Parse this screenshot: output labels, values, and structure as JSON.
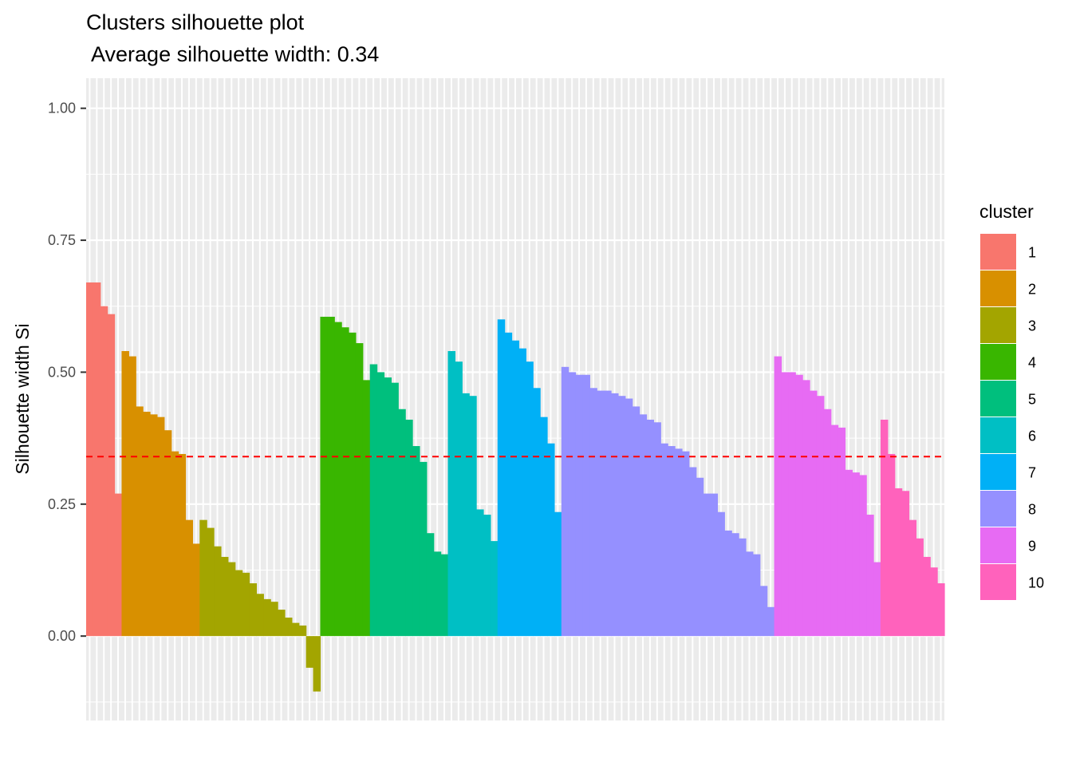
{
  "chart_data": {
    "type": "bar",
    "title": "Clusters silhouette plot",
    "subtitle": " Average silhouette width: 0.34",
    "xlabel": "",
    "ylabel": "Silhouette width Si",
    "ylim": [
      -0.16,
      1.057
    ],
    "yticks": [
      "0.00",
      "0.25",
      "0.50",
      "0.75",
      "1.00"
    ],
    "ytick_values": [
      0,
      0.25,
      0.5,
      0.75,
      1.0
    ],
    "average_line": 0.34,
    "average_line_color": "#FF0000",
    "panel_background": "#EBEBEB",
    "grid": true,
    "legend": {
      "title": "cluster",
      "position": "right",
      "items": [
        {
          "label": "1",
          "color": "#F8766D"
        },
        {
          "label": "2",
          "color": "#D89000"
        },
        {
          "label": "3",
          "color": "#A3A500"
        },
        {
          "label": "4",
          "color": "#39B600"
        },
        {
          "label": "5",
          "color": "#00BF7D"
        },
        {
          "label": "6",
          "color": "#00BFC4"
        },
        {
          "label": "7",
          "color": "#00B0F6"
        },
        {
          "label": "8",
          "color": "#9590FF"
        },
        {
          "label": "9",
          "color": "#E76BF3"
        },
        {
          "label": "10",
          "color": "#FF62BC"
        }
      ]
    },
    "series": [
      {
        "cluster": "1",
        "values": [
          0.67,
          0.67,
          0.625,
          0.61,
          0.27
        ]
      },
      {
        "cluster": "2",
        "values": [
          0.54,
          0.53,
          0.435,
          0.425,
          0.42,
          0.415,
          0.39,
          0.35,
          0.345,
          0.22,
          0.175
        ]
      },
      {
        "cluster": "3",
        "values": [
          0.22,
          0.205,
          0.17,
          0.15,
          0.14,
          0.125,
          0.12,
          0.1,
          0.08,
          0.07,
          0.065,
          0.05,
          0.035,
          0.025,
          0.02,
          -0.06,
          -0.105
        ]
      },
      {
        "cluster": "4",
        "values": [
          0.605,
          0.605,
          0.595,
          0.585,
          0.575,
          0.555,
          0.485
        ]
      },
      {
        "cluster": "5",
        "values": [
          0.515,
          0.5,
          0.49,
          0.48,
          0.43,
          0.41,
          0.36,
          0.33,
          0.195,
          0.16,
          0.155
        ]
      },
      {
        "cluster": "6",
        "values": [
          0.54,
          0.52,
          0.46,
          0.455,
          0.24,
          0.23,
          0.18
        ]
      },
      {
        "cluster": "7",
        "values": [
          0.6,
          0.575,
          0.56,
          0.545,
          0.52,
          0.47,
          0.415,
          0.365,
          0.235
        ]
      },
      {
        "cluster": "8",
        "values": [
          0.51,
          0.5,
          0.495,
          0.495,
          0.47,
          0.465,
          0.465,
          0.46,
          0.455,
          0.45,
          0.435,
          0.42,
          0.41,
          0.405,
          0.365,
          0.36,
          0.355,
          0.35,
          0.32,
          0.3,
          0.27,
          0.27,
          0.235,
          0.2,
          0.195,
          0.185,
          0.16,
          0.155,
          0.095,
          0.055
        ]
      },
      {
        "cluster": "9",
        "values": [
          0.53,
          0.5,
          0.5,
          0.495,
          0.485,
          0.465,
          0.455,
          0.43,
          0.4,
          0.395,
          0.315,
          0.31,
          0.305,
          0.23,
          0.14
        ]
      },
      {
        "cluster": "10",
        "values": [
          0.41,
          0.345,
          0.28,
          0.275,
          0.22,
          0.185,
          0.15,
          0.13,
          0.1
        ]
      }
    ]
  }
}
